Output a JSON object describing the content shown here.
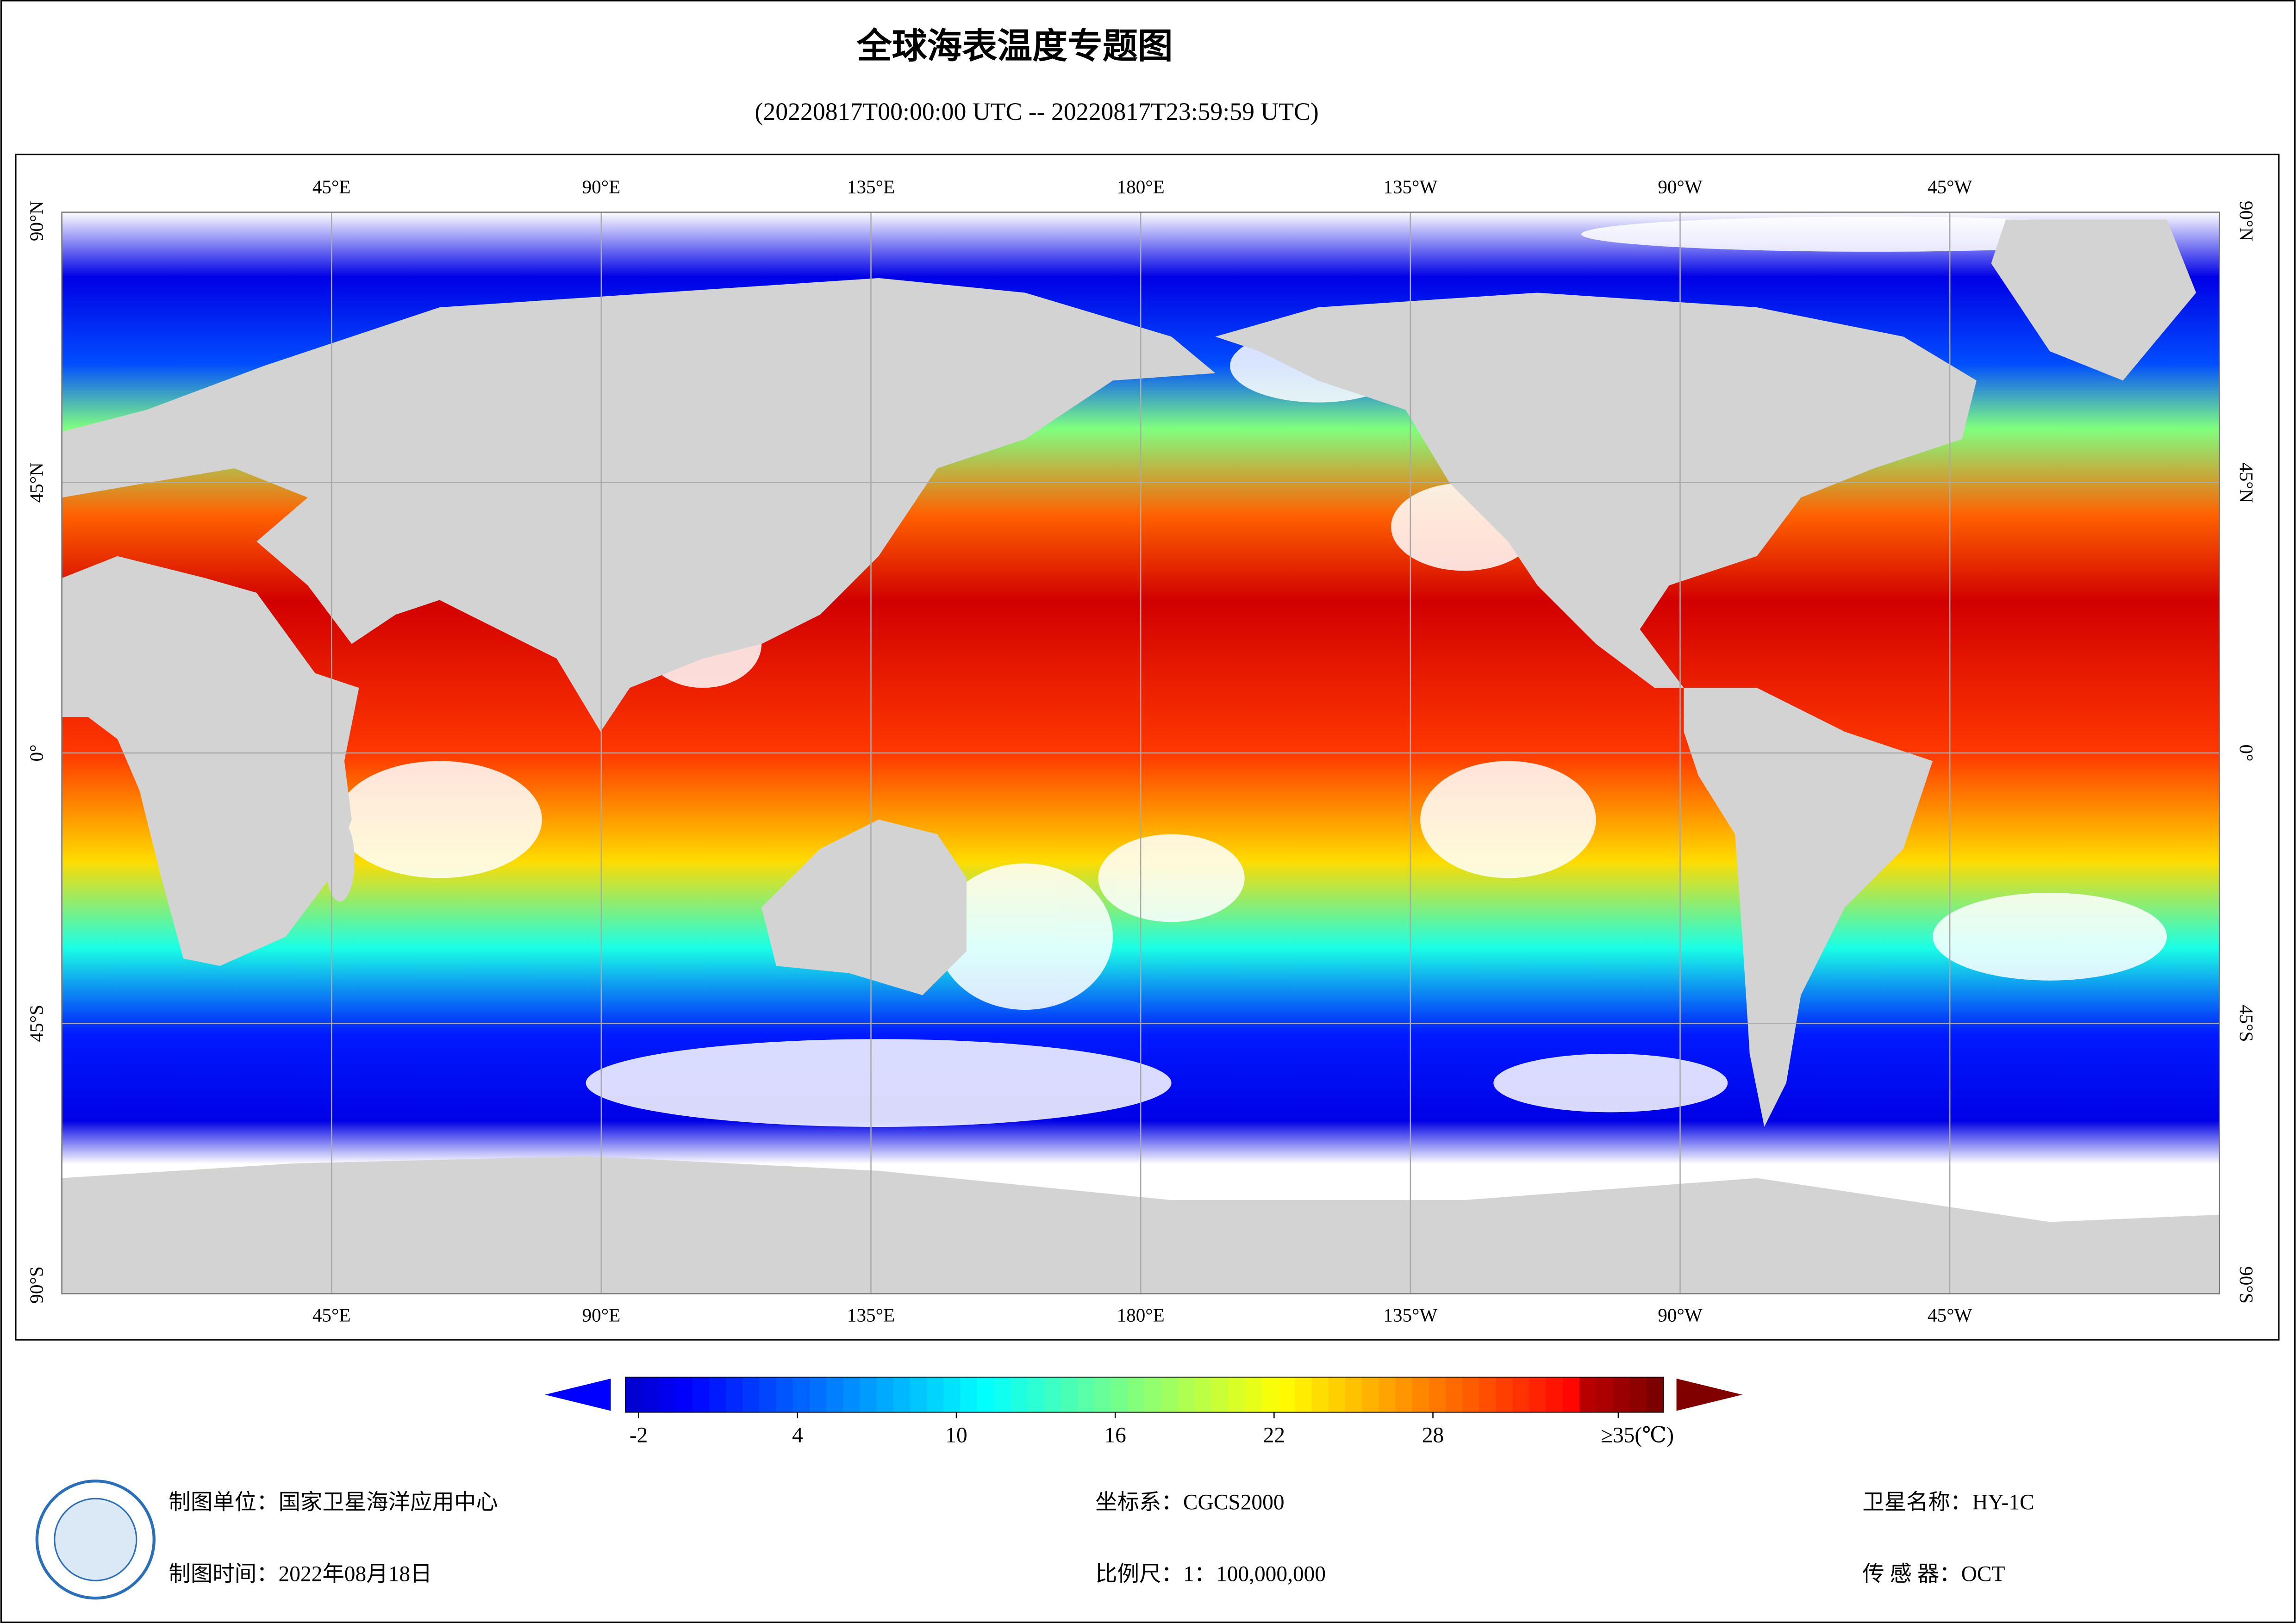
{
  "map": {
    "title": "全球海表温度专题图",
    "subtitle": "(20220817T00:00:00 UTC -- 20220817T23:59:59 UTC)",
    "lon_range": [
      0,
      360
    ],
    "lat_range": [
      -90,
      90
    ],
    "lon_ticks": [
      {
        "value": 45,
        "label": "45°E"
      },
      {
        "value": 90,
        "label": "90°E"
      },
      {
        "value": 135,
        "label": "135°E"
      },
      {
        "value": 180,
        "label": "180°E"
      },
      {
        "value": 225,
        "label": "135°W"
      },
      {
        "value": 270,
        "label": "90°W"
      },
      {
        "value": 315,
        "label": "45°W"
      }
    ],
    "lat_ticks": [
      {
        "value": 90,
        "label": "90°N"
      },
      {
        "value": 45,
        "label": "45°N"
      },
      {
        "value": 0,
        "label": "0°"
      },
      {
        "value": -45,
        "label": "45°S"
      },
      {
        "value": -90,
        "label": "90°S"
      }
    ],
    "grid": true
  },
  "colorbar": {
    "range": [
      -2.5,
      36.7
    ],
    "ticks": [
      -2,
      4,
      10,
      16,
      22,
      28,
      {
        "value": 35,
        "label": "≥35(℃)"
      }
    ]
  },
  "footer": {
    "producer": "制图单位：国家卫星海洋应用中心",
    "time": "制图时间：2022年08月18日",
    "crs": "坐标系：CGCS2000",
    "scale": "比例尺：1：100,000,000",
    "satellite": "卫星名称：HY-1C",
    "sensor": "传 感 器：OCT"
  }
}
